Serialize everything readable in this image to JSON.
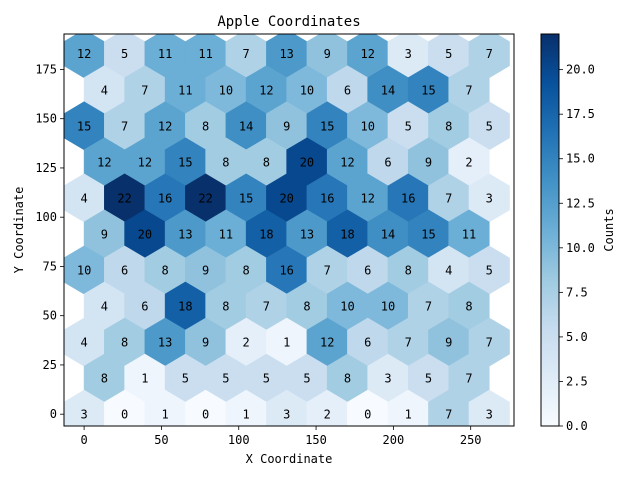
{
  "chart_data": {
    "type": "hexbin",
    "title": "Apple Coordinates",
    "xlabel": "X Coordinate",
    "ylabel": "Y Coordinate",
    "colorbar_label": "Counts",
    "colormap": "Blues",
    "color_range": [
      0,
      22
    ],
    "xlim": [
      -13,
      278
    ],
    "ylim": [
      -6,
      193
    ],
    "x_ticks": [
      0,
      50,
      100,
      150,
      200,
      250
    ],
    "y_ticks": [
      0,
      25,
      50,
      75,
      100,
      125,
      150,
      175
    ],
    "colorbar_ticks": [
      "0.0",
      "2.5",
      "5.0",
      "7.5",
      "10.0",
      "12.5",
      "15.0",
      "17.5",
      "20.0"
    ],
    "hex_spacing_x": 26.2,
    "hex_spacing_y": 18.3,
    "rows": [
      {
        "y": 183,
        "x_start": 0,
        "counts": [
          12,
          5,
          11,
          11,
          7,
          13,
          9,
          12,
          3,
          5,
          7
        ]
      },
      {
        "y": 164.7,
        "x_start": 13.1,
        "counts": [
          4,
          7,
          11,
          10,
          12,
          10,
          6,
          14,
          15,
          7
        ]
      },
      {
        "y": 146.4,
        "x_start": 0,
        "counts": [
          15,
          7,
          12,
          8,
          14,
          9,
          15,
          10,
          5,
          8,
          5
        ]
      },
      {
        "y": 128.1,
        "x_start": 13.1,
        "counts": [
          12,
          12,
          15,
          8,
          8,
          20,
          12,
          6,
          9,
          2
        ]
      },
      {
        "y": 109.8,
        "x_start": 0,
        "counts": [
          4,
          22,
          16,
          22,
          15,
          20,
          16,
          12,
          16,
          7,
          3
        ]
      },
      {
        "y": 91.5,
        "x_start": 13.1,
        "counts": [
          9,
          20,
          13,
          11,
          18,
          13,
          18,
          14,
          15,
          11
        ]
      },
      {
        "y": 73.2,
        "x_start": 0,
        "counts": [
          10,
          6,
          8,
          9,
          8,
          16,
          7,
          6,
          8,
          4,
          5
        ]
      },
      {
        "y": 54.9,
        "x_start": 13.1,
        "counts": [
          4,
          6,
          18,
          8,
          7,
          8,
          10,
          10,
          7,
          8
        ]
      },
      {
        "y": 36.6,
        "x_start": 0,
        "counts": [
          4,
          8,
          13,
          9,
          2,
          1,
          12,
          6,
          7,
          9,
          7
        ]
      },
      {
        "y": 18.3,
        "x_start": 13.1,
        "counts": [
          8,
          1,
          5,
          5,
          5,
          5,
          8,
          3,
          5,
          7
        ]
      },
      {
        "y": 0,
        "x_start": 0,
        "counts": [
          3,
          0,
          1,
          0,
          1,
          3,
          2,
          0,
          1,
          7,
          3
        ]
      }
    ]
  }
}
